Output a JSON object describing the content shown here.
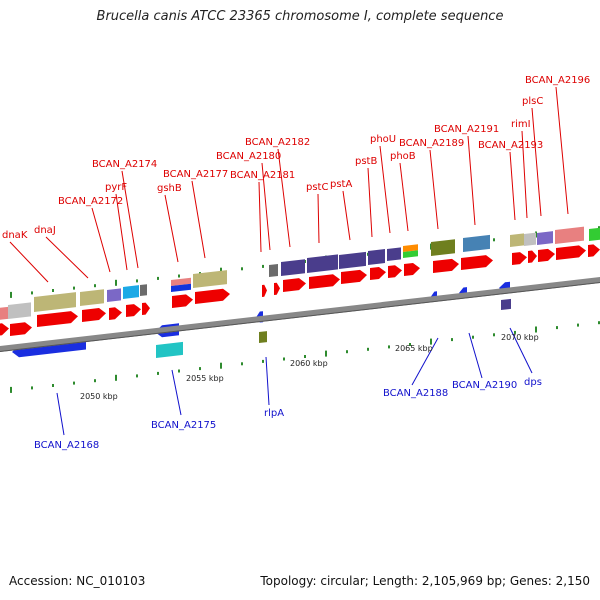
{
  "title": "Brucella canis ATCC 23365 chromosome I, complete sequence",
  "footer": {
    "accession": "Accession: NC_010103",
    "summary": "Topology: circular; Length: 2,105,969 bp; Genes: 2,150"
  },
  "ruler_labels": [
    "2050 kbp",
    "2055 kbp",
    "2060 kbp",
    "2065 kbp",
    "2070 kbp"
  ],
  "colors": {
    "forward_label": "#dd0000",
    "reverse_label": "#1111cc",
    "backbone": "#888888",
    "tick": "#2e8b2e"
  },
  "forward_gene_labels": [
    "dnaK",
    "dnaJ",
    "BCAN_A2172",
    "pyrF",
    "BCAN_A2174",
    "gshB",
    "BCAN_A2177",
    "BCAN_A2180",
    "BCAN_A2181",
    "BCAN_A2182",
    "pstC",
    "pstA",
    "pstB",
    "phoU",
    "phoB",
    "BCAN_A2189",
    "BCAN_A2191",
    "BCAN_A2193",
    "rimI",
    "plsC",
    "BCAN_A2196"
  ],
  "reverse_gene_labels": [
    "BCAN_A2168",
    "BCAN_A2175",
    "rlpA",
    "BCAN_A2188",
    "BCAN_A2190",
    "dps"
  ]
}
